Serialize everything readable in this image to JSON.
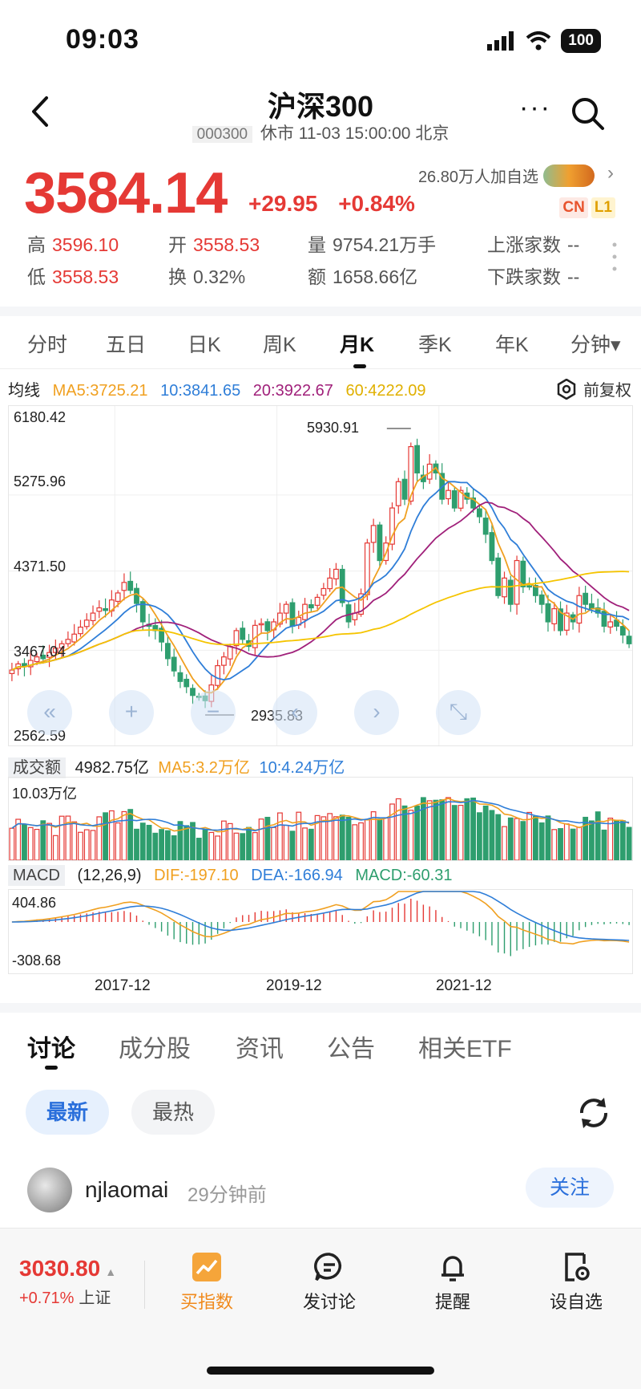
{
  "status_bar": {
    "time": "09:03",
    "battery": "100"
  },
  "nav": {
    "title": "沪深300",
    "code": "000300",
    "status": "休市 11-03 15:00:00 北京",
    "more_label": "···"
  },
  "quote": {
    "price": "3584.14",
    "change": "+29.95",
    "change_pct": "+0.84%",
    "followers": "26.80万人加自选",
    "badge_cn": "CN",
    "badge_l1": "L1",
    "high_label": "高",
    "high": "3596.10",
    "open_label": "开",
    "open": "3558.53",
    "volume_label": "量",
    "volume": "9754.21万手",
    "up_label": "上涨家数",
    "up": "--",
    "low_label": "低",
    "low": "3558.53",
    "turnover_label": "换",
    "turnover": "0.32%",
    "amount_label": "额",
    "amount": "1658.66亿",
    "down_label": "下跌家数",
    "down": "--"
  },
  "period_tabs": [
    "分时",
    "五日",
    "日K",
    "周K",
    "月K",
    "季K",
    "年K",
    "分钟▾"
  ],
  "ma": {
    "label": "均线",
    "ma5": "MA5:3725.21",
    "ma10": "10:3841.65",
    "ma20": "20:3922.67",
    "ma60": "60:4222.09",
    "adjust": "前复权"
  },
  "colors": {
    "up": "#e53935",
    "down": "#2e9e6e",
    "ma5": "#f0a020",
    "ma10": "#2f7ed8",
    "ma20": "#a0207a",
    "ma60": "#f5c400",
    "accent": "#2a6fdb"
  },
  "chart_data": {
    "type": "candlestick",
    "y_ticks": [
      "6180.42",
      "5275.96",
      "4371.50",
      "3467.04",
      "2562.59"
    ],
    "ylim": [
      2562.59,
      6180.42
    ],
    "max_label": "5930.91",
    "min_label": "2935.83",
    "x_labels": [
      "2017-12",
      "2019-12",
      "2021-12"
    ],
    "closes": [
      3350,
      3420,
      3390,
      3460,
      3500,
      3480,
      3550,
      3600,
      3650,
      3700,
      3760,
      3840,
      3920,
      4000,
      4060,
      4030,
      4150,
      4230,
      4350,
      4260,
      4110,
      3900,
      3850,
      3800,
      3670,
      3480,
      3340,
      3220,
      3160,
      3060,
      3050,
      3000,
      3180,
      3400,
      3500,
      3620,
      3800,
      3700,
      3620,
      3860,
      3880,
      3800,
      3900,
      4000,
      4100,
      3850,
      3950,
      4100,
      4060,
      4180,
      4280,
      4400,
      4500,
      4120,
      3900,
      4000,
      4220,
      4800,
      5000,
      4600,
      4800,
      5200,
      5500,
      5300,
      5900,
      5600,
      5500,
      5700,
      5600,
      5300,
      5400,
      5200,
      5400,
      5300,
      5200,
      5100,
      4900,
      4600,
      4200,
      4400,
      4100,
      4600,
      4300,
      4300,
      4200,
      4100,
      3900,
      4050,
      3800,
      4000,
      3900,
      4200,
      4100,
      4050,
      4000,
      3850,
      3900,
      3850,
      3750,
      3650
    ],
    "volume": {
      "label": "成交额",
      "value": "4982.75亿",
      "ma5": "MA5:3.2万亿",
      "ma10": "10:4.24万亿",
      "max": "10.03万亿"
    },
    "macd": {
      "label": "MACD",
      "params": "(12,26,9)",
      "dif": "DIF:-197.10",
      "dea": "DEA:-166.94",
      "macd": "MACD:-60.31",
      "top": "404.86",
      "bottom": "-308.68"
    }
  },
  "content_tabs": [
    "讨论",
    "成分股",
    "资讯",
    "公告",
    "相关ETF"
  ],
  "filters": {
    "latest": "最新",
    "hot": "最热"
  },
  "post": {
    "user": "njlaomai",
    "time": "29分钟前",
    "follow": "关注"
  },
  "bottom": {
    "index_price": "3030.80",
    "index_change": "+0.71%",
    "index_name": "上证",
    "actions": [
      "买指数",
      "发讨论",
      "提醒",
      "设自选"
    ]
  }
}
